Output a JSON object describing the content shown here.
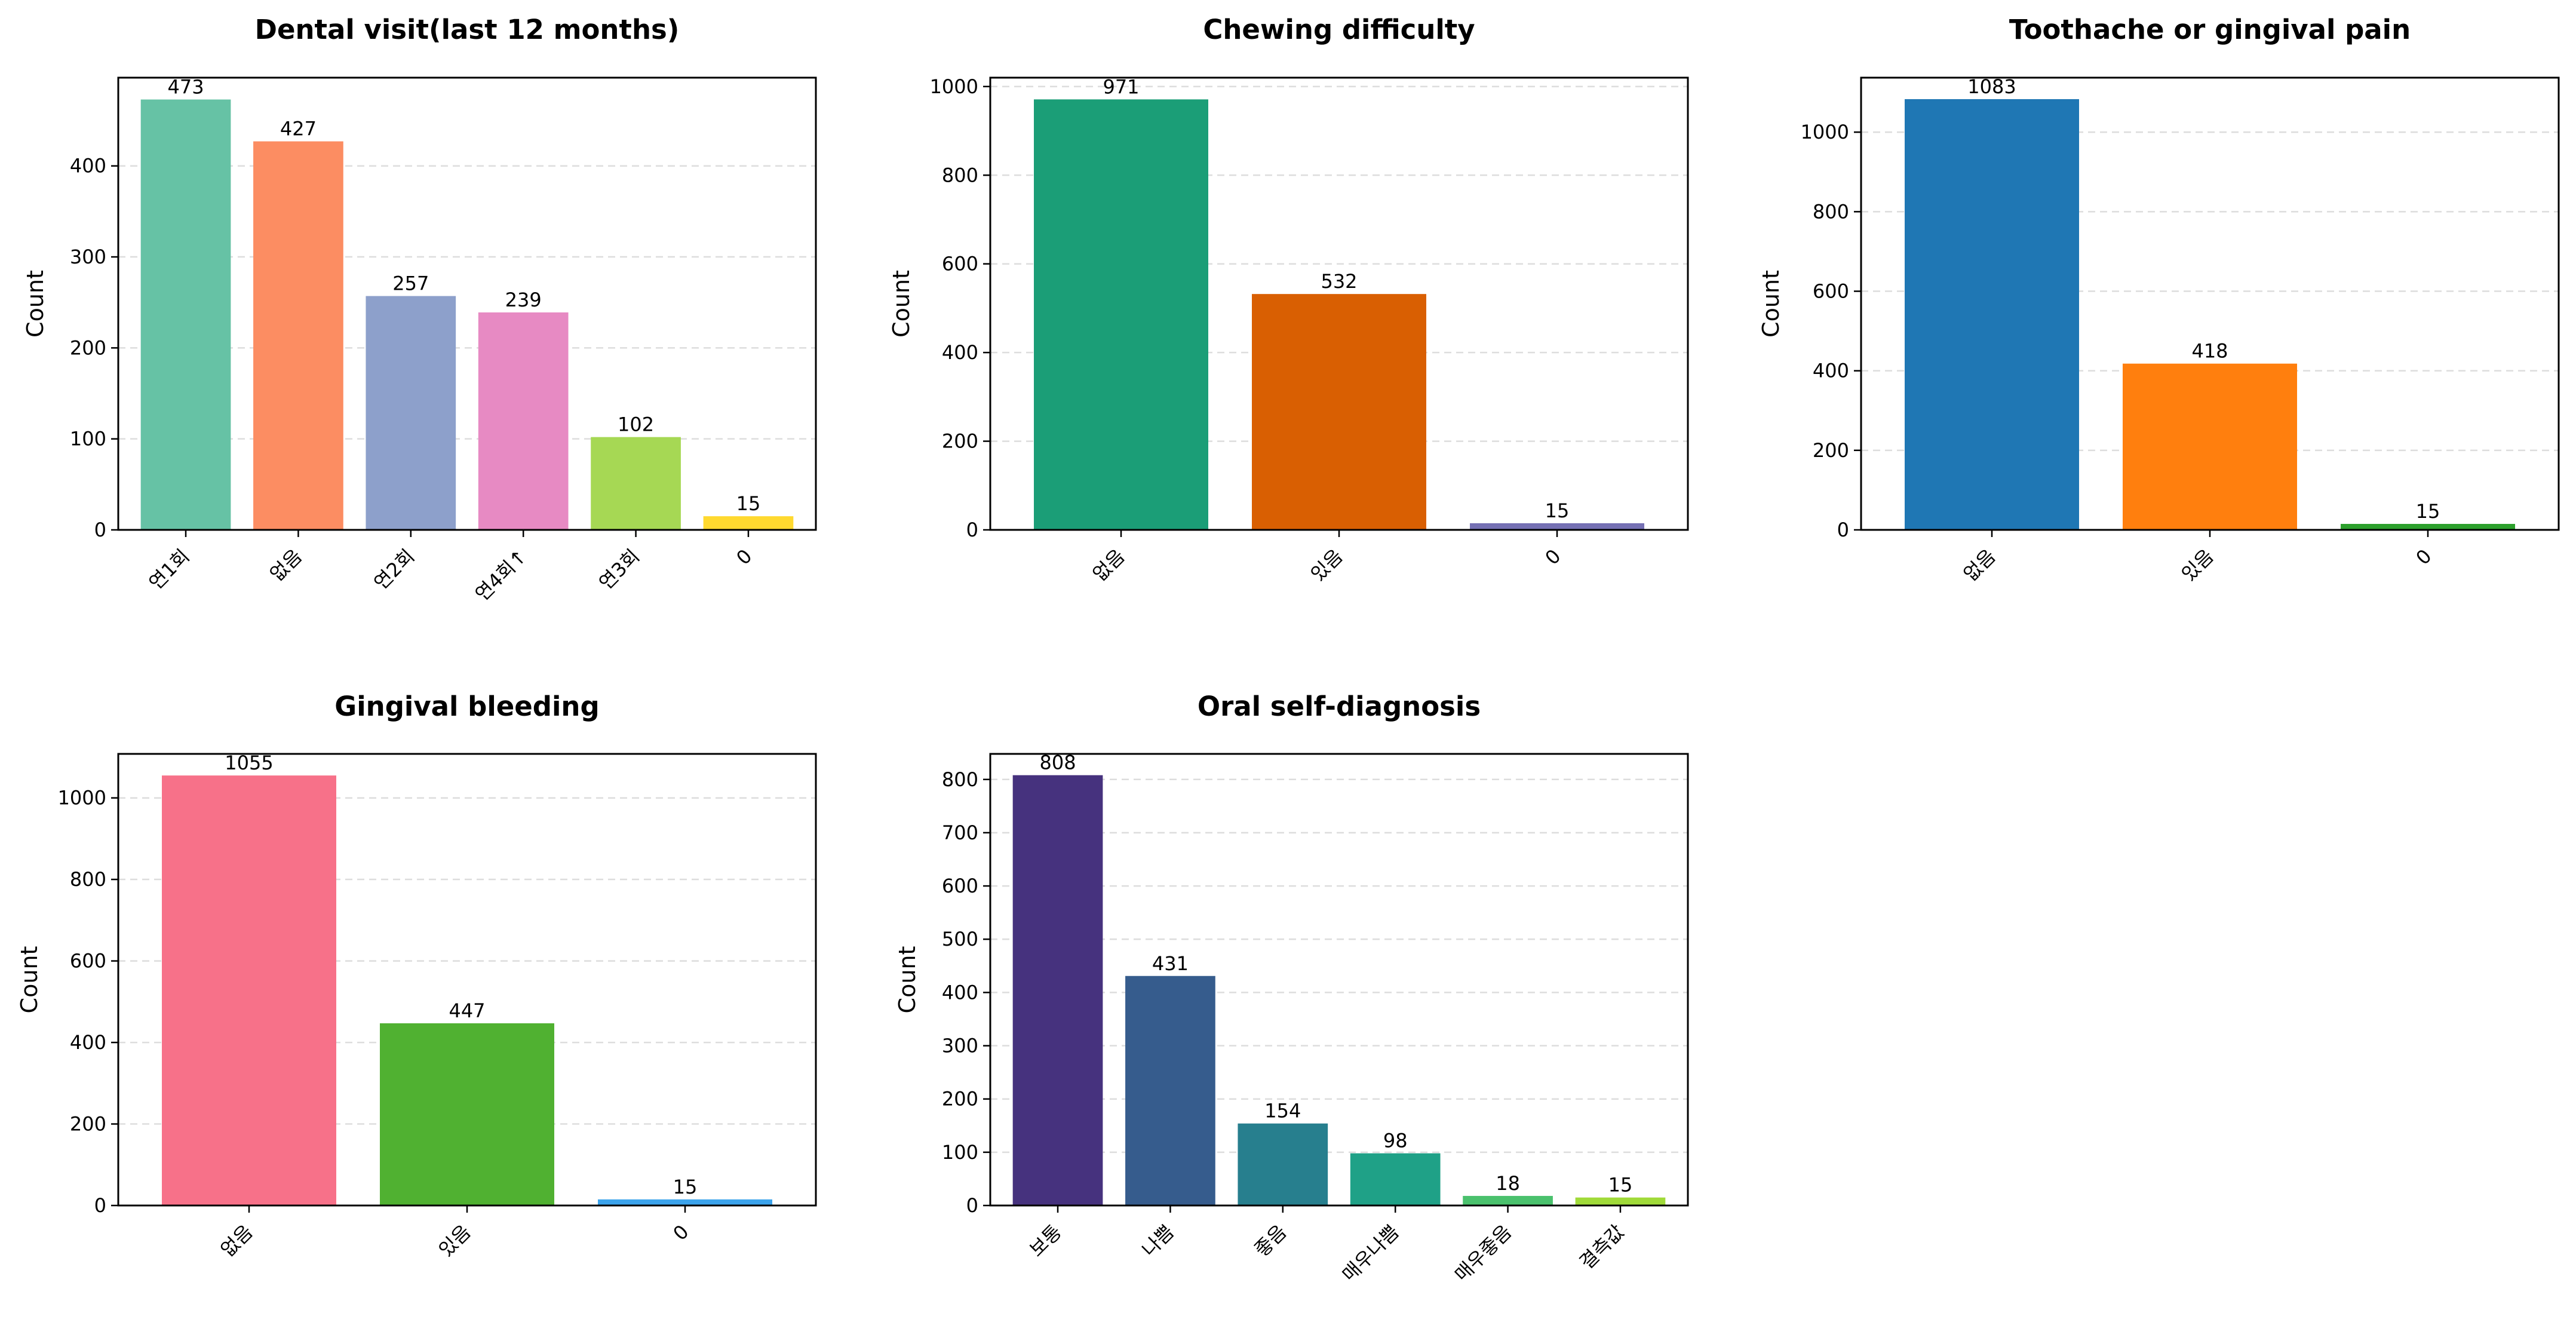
{
  "chart_data": [
    {
      "type": "bar",
      "title": "Dental visit(last 12 months)",
      "xlabel": "",
      "ylabel": "Count",
      "categories": [
        "연1회",
        "없음",
        "연2회",
        "연4회↑",
        "연3회",
        "0"
      ],
      "values": [
        473,
        427,
        257,
        239,
        102,
        15
      ],
      "ylim": [
        0,
        497
      ],
      "yticks": [
        0,
        100,
        200,
        300,
        400
      ],
      "colors": [
        "#66c2a5",
        "#fc8d62",
        "#8da0cb",
        "#e78ac3",
        "#a6d854",
        "#ffd92f"
      ],
      "grid": "y"
    },
    {
      "type": "bar",
      "title": "Chewing difficulty",
      "xlabel": "",
      "ylabel": "Count",
      "categories": [
        "없음",
        "있음",
        "0"
      ],
      "values": [
        971,
        532,
        15
      ],
      "ylim": [
        0,
        1020
      ],
      "yticks": [
        0,
        200,
        400,
        600,
        800,
        1000
      ],
      "colors": [
        "#1b9e77",
        "#d95f02",
        "#7570b3"
      ],
      "grid": "y"
    },
    {
      "type": "bar",
      "title": "Toothache or gingival pain",
      "xlabel": "",
      "ylabel": "Count",
      "categories": [
        "없음",
        "있음",
        "0"
      ],
      "values": [
        1083,
        418,
        15
      ],
      "ylim": [
        0,
        1137
      ],
      "yticks": [
        0,
        200,
        400,
        600,
        800,
        1000
      ],
      "colors": [
        "#1f77b4",
        "#ff7f0e",
        "#2ca02c"
      ],
      "grid": "y"
    },
    {
      "type": "bar",
      "title": "Gingival bleeding",
      "xlabel": "",
      "ylabel": "Count",
      "categories": [
        "없음",
        "있음",
        "0"
      ],
      "values": [
        1055,
        447,
        15
      ],
      "ylim": [
        0,
        1108
      ],
      "yticks": [
        0,
        200,
        400,
        600,
        800,
        1000
      ],
      "colors": [
        "#f77189",
        "#50b131",
        "#3ba3ec"
      ],
      "grid": "y"
    },
    {
      "type": "bar",
      "title": "Oral self-diagnosis",
      "xlabel": "",
      "ylabel": "Count",
      "categories": [
        "보통",
        "나쁨",
        "좋음",
        "매우나쁨",
        "매우좋음",
        "결측값"
      ],
      "values": [
        808,
        431,
        154,
        98,
        18,
        15
      ],
      "ylim": [
        0,
        848
      ],
      "yticks": [
        0,
        100,
        200,
        300,
        400,
        500,
        600,
        700,
        800
      ],
      "colors": [
        "#46327e",
        "#365c8d",
        "#277f8e",
        "#1fa187",
        "#4ac16d",
        "#a0da39"
      ],
      "grid": "y"
    }
  ]
}
